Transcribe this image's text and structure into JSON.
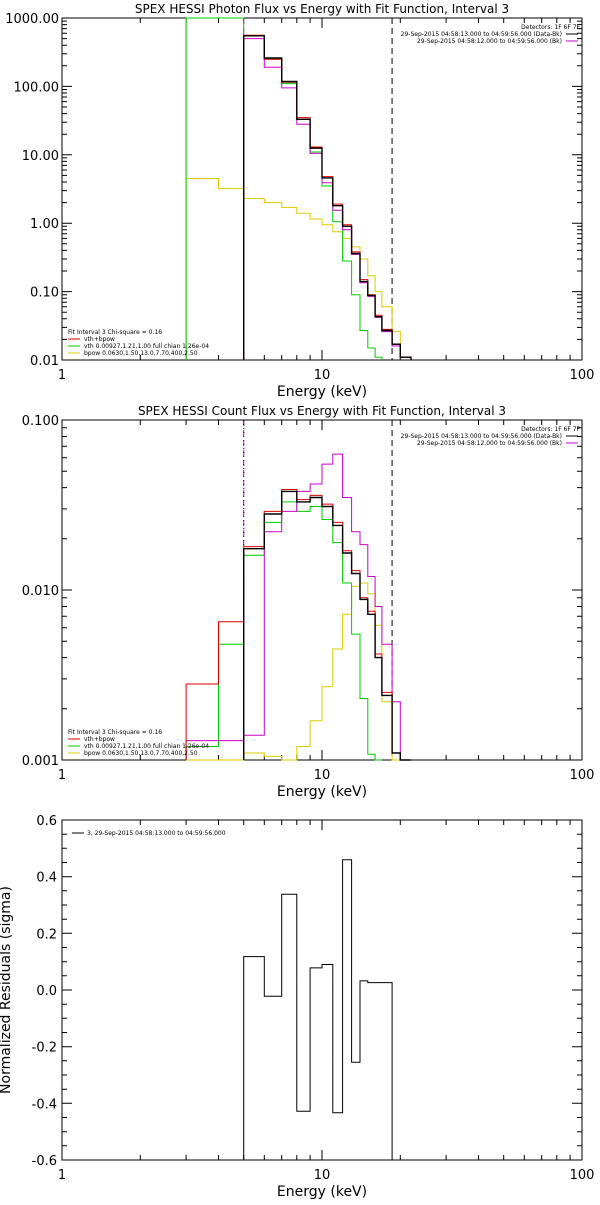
{
  "colors": {
    "total": "#dd0000",
    "vth": "#00cc00",
    "bpow": "#ddcc00",
    "bk": "#cc00cc",
    "data": "#000000"
  },
  "panels": [
    {
      "title": "SPEX HESSI Photon Flux vs Energy with Fit Function, Interval 3",
      "xlabel": "Energy (keV)",
      "yticks": [
        "1000.00",
        "100.00",
        "10.00",
        "1.00",
        "0.10",
        "0.01"
      ],
      "xticks": [
        "1",
        "10",
        "100"
      ],
      "detectors": "Detectors: 1F 6F 7F",
      "time_line1": "29-Sep-2015 04:58:13.000 to 04:59:56.000 (Data-Bk)",
      "time_line2": "29-Sep-2015 04:58:12.000 to 04:59:56.000 (Bk)",
      "legend_title": "Fit Interval 3   Chi-square = 0.16",
      "legend_entries": [
        "vth+bpow",
        "vth 0.00927,1.21,1.00  full chian 1.26e-04",
        "bpow 0.0630,1.50,13.0,7.70,400,2.50"
      ]
    },
    {
      "title": "SPEX HESSI Count Flux vs Energy with Fit Function, Interval 3",
      "xlabel": "Energy (keV)",
      "yticks": [
        "0.100",
        "0.010",
        "0.001"
      ],
      "xticks": [
        "1",
        "10",
        "100"
      ],
      "detectors": "Detectors: 1F 6F 7F",
      "time_line1": "29-Sep-2015 04:58:13.000 to 04:59:56.000 (Data-Bk)",
      "time_line2": "29-Sep-2015 04:58:12.000 to 04:59:56.000 (Bk)",
      "legend_title": "Fit Interval 3   Chi-square = 0.16",
      "legend_entries": [
        "vth+bpow",
        "vth 0.00927,1.21,1.00  full chian 1.26e-04",
        "bpow 0.0630,1.50,13.0,7.70,400,2.50"
      ]
    },
    {
      "title": "",
      "xlabel": "Energy (keV)",
      "ylabel": "Normalized Residuals (sigma)",
      "yticks": [
        "0.6",
        "0.4",
        "0.2",
        "0.0",
        "-0.2",
        "-0.4",
        "-0.6"
      ],
      "xticks": [
        "1",
        "10",
        "100"
      ],
      "legend_entries": [
        "3, 29-Sep-2015 04:58:13.000 to 04:59:56.000"
      ]
    }
  ],
  "chart_data": [
    {
      "type": "line",
      "title": "SPEX HESSI Photon Flux vs Energy with Fit Function, Interval 3",
      "xlabel": "Energy (keV)",
      "ylabel": "",
      "xscale": "log",
      "yscale": "log",
      "xlim": [
        1,
        100
      ],
      "ylim": [
        0.01,
        1000
      ],
      "fit_range": [
        5.0,
        18.6
      ],
      "markers": [
        {
          "x": 3.0,
          "color": "#00cc00",
          "style": "solid"
        },
        {
          "x": 5.0,
          "color": "#cc00cc",
          "style": "dashed"
        },
        {
          "x": 18.6,
          "color": "#000000",
          "style": "dashed"
        }
      ],
      "series": [
        {
          "name": "vth+bpow",
          "color": "#dd0000",
          "edges": [
            5.0,
            6.0,
            7.0,
            8.0,
            9.0,
            10.0,
            11.0,
            12.0,
            13.0,
            14.0,
            15.0,
            16.0,
            17.0,
            18.6,
            20.0,
            22.0
          ],
          "values": [
            560,
            250,
            115,
            35,
            13,
            4.8,
            1.9,
            0.95,
            0.38,
            0.15,
            0.09,
            0.045,
            0.028,
            0.017,
            0.011
          ]
        },
        {
          "name": "data",
          "color": "#000000",
          "edges": [
            5.0,
            6.0,
            7.0,
            8.0,
            9.0,
            10.0,
            11.0,
            12.0,
            13.0,
            14.0,
            15.0,
            16.0,
            17.0,
            18.6,
            20.0,
            22.0
          ],
          "values": [
            550,
            260,
            118,
            33,
            12.5,
            4.6,
            1.8,
            0.9,
            0.36,
            0.14,
            0.088,
            0.043,
            0.027,
            0.017,
            0.011
          ]
        },
        {
          "name": "vth",
          "color": "#00cc00",
          "edges": [
            3.0,
            5.0,
            6.0,
            7.0,
            8.0,
            9.0,
            10.0,
            11.0,
            12.0,
            13.0,
            14.0,
            15.0,
            16.0,
            17.0
          ],
          "values": [
            1000,
            550,
            250,
            110,
            33,
            11,
            3.5,
            1.05,
            0.28,
            0.09,
            0.027,
            0.015,
            0.011
          ]
        },
        {
          "name": "bpow",
          "color": "#ddcc00",
          "edges": [
            3.0,
            4.0,
            5.0,
            6.0,
            7.0,
            8.0,
            9.0,
            10.0,
            11.0,
            12.0,
            13.0,
            14.0,
            15.0,
            16.0,
            17.0,
            18.6,
            20.0,
            22.0
          ],
          "values": [
            4.5,
            3.2,
            2.3,
            2.0,
            1.7,
            1.4,
            1.15,
            0.95,
            0.75,
            0.6,
            0.45,
            0.3,
            0.17,
            0.1,
            0.06,
            0.026,
            0.011
          ]
        },
        {
          "name": "bk",
          "color": "#cc00cc",
          "edges": [
            5.0,
            6.0,
            7.0,
            8.0,
            9.0,
            10.0,
            11.0,
            12.0,
            13.0,
            14.0,
            15.0,
            16.0,
            17.0,
            18.6,
            20.0,
            22.0
          ],
          "values": [
            500,
            190,
            95,
            28,
            10.5,
            3.9,
            1.55,
            0.8,
            0.35,
            0.135,
            0.085,
            0.042,
            0.026,
            0.016,
            0.011
          ]
        }
      ]
    },
    {
      "type": "line",
      "title": "SPEX HESSI Count Flux vs Energy with Fit Function, Interval 3",
      "xlabel": "Energy (keV)",
      "ylabel": "",
      "xscale": "log",
      "yscale": "log",
      "xlim": [
        1,
        100
      ],
      "ylim": [
        0.001,
        0.1
      ],
      "fit_range": [
        5.0,
        18.6
      ],
      "markers": [
        {
          "x": 5.0,
          "color": "#cc00cc",
          "style": "dashed"
        },
        {
          "x": 5.0,
          "color": "#000000",
          "style": "dotted"
        },
        {
          "x": 18.6,
          "color": "#000000",
          "style": "dashed"
        }
      ],
      "series": [
        {
          "name": "vth+bpow",
          "color": "#dd0000",
          "edges": [
            3.0,
            4.0,
            5.0,
            6.0,
            7.0,
            8.0,
            9.0,
            10.0,
            11.0,
            12.0,
            13.0,
            14.0,
            15.0,
            16.0,
            17.0,
            18.6,
            20.0,
            22.0
          ],
          "values": [
            0.0028,
            0.0065,
            0.018,
            0.029,
            0.039,
            0.034,
            0.036,
            0.032,
            0.025,
            0.017,
            0.013,
            0.009,
            0.0075,
            0.0042,
            0.0025,
            0.0011,
            0.001
          ]
        },
        {
          "name": "data",
          "color": "#000000",
          "edges": [
            5.0,
            6.0,
            7.0,
            8.0,
            9.0,
            10.0,
            11.0,
            12.0,
            13.0,
            14.0,
            15.0,
            16.0,
            17.0,
            18.6,
            20.0,
            22.0
          ],
          "values": [
            0.0175,
            0.028,
            0.038,
            0.033,
            0.035,
            0.031,
            0.024,
            0.0165,
            0.0125,
            0.0088,
            0.0072,
            0.004,
            0.0024,
            0.0011,
            0.001
          ]
        },
        {
          "name": "vth",
          "color": "#00cc00",
          "edges": [
            3.0,
            4.0,
            5.0,
            6.0,
            7.0,
            8.0,
            9.0,
            10.0,
            11.0,
            12.0,
            13.0,
            14.0,
            15.0,
            16.0,
            17.0
          ],
          "values": [
            0.0012,
            0.0048,
            0.016,
            0.025,
            0.033,
            0.029,
            0.031,
            0.026,
            0.019,
            0.011,
            0.0055,
            0.0023,
            0.00108,
            0.0009
          ]
        },
        {
          "name": "bpow",
          "color": "#ddcc00",
          "edges": [
            3.0,
            4.0,
            5.0,
            6.0,
            7.0,
            8.0,
            9.0,
            10.0,
            11.0,
            12.0,
            13.0,
            14.0,
            15.0,
            16.0,
            17.0,
            18.6,
            20.0,
            22.0
          ],
          "values": [
            0.00095,
            0.0009,
            0.0011,
            0.00105,
            0.0009,
            0.0012,
            0.0017,
            0.0027,
            0.0045,
            0.0072,
            0.0105,
            0.011,
            0.0095,
            0.0062,
            0.0022,
            0.001,
            0.001
          ]
        },
        {
          "name": "bk",
          "color": "#cc00cc",
          "edges": [
            3.0,
            4.0,
            5.0,
            6.0,
            7.0,
            8.0,
            9.0,
            10.0,
            11.0,
            12.0,
            13.0,
            14.0,
            15.0,
            16.0,
            17.0,
            18.6,
            20.0,
            22.0
          ],
          "values": [
            0.0013,
            0.0013,
            0.0014,
            0.022,
            0.029,
            0.038,
            0.042,
            0.055,
            0.063,
            0.035,
            0.022,
            0.0185,
            0.012,
            0.008,
            0.0048,
            0.0022,
            0.001
          ]
        }
      ]
    },
    {
      "type": "line",
      "title": "",
      "xlabel": "Energy (keV)",
      "ylabel": "Normalized Residuals (sigma)",
      "xscale": "log",
      "yscale": "linear",
      "xlim": [
        1,
        100
      ],
      "ylim": [
        -0.6,
        0.6
      ],
      "series": [
        {
          "name": "3, 29-Sep-2015 04:58:13.000 to 04:59:56.000",
          "color": "#000000",
          "edges": [
            5.0,
            6.0,
            7.0,
            8.0,
            9.0,
            10.0,
            11.0,
            12.0,
            13.0,
            14.0,
            15.0,
            16.0,
            17.0,
            18.6
          ],
          "values": [
            0.118,
            -0.022,
            0.338,
            -0.428,
            0.078,
            0.09,
            -0.433,
            0.46,
            -0.255,
            0.032,
            0.026,
            0.026,
            0.026
          ]
        }
      ]
    }
  ]
}
